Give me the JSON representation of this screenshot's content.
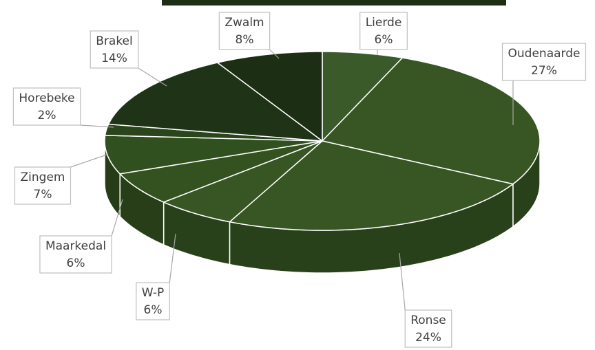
{
  "chart_data": {
    "type": "pie3d",
    "categories": [
      "Lierde",
      "Oudenaarde",
      "Ronse",
      "W-P",
      "Maarkedal",
      "Zingem",
      "Horebeke",
      "Brakel",
      "Zwalm"
    ],
    "values": [
      6,
      27,
      24,
      6,
      6,
      7,
      2,
      14,
      8
    ],
    "value_labels": [
      "6%",
      "27%",
      "24%",
      "6%",
      "6%",
      "7%",
      "2%",
      "14%",
      "8%"
    ],
    "colors": [
      "#3b5a2a",
      "#375623",
      "#375623",
      "#375623",
      "#345220",
      "#31501f",
      "#2a441b",
      "#1f3416",
      "#1c2e13"
    ]
  }
}
